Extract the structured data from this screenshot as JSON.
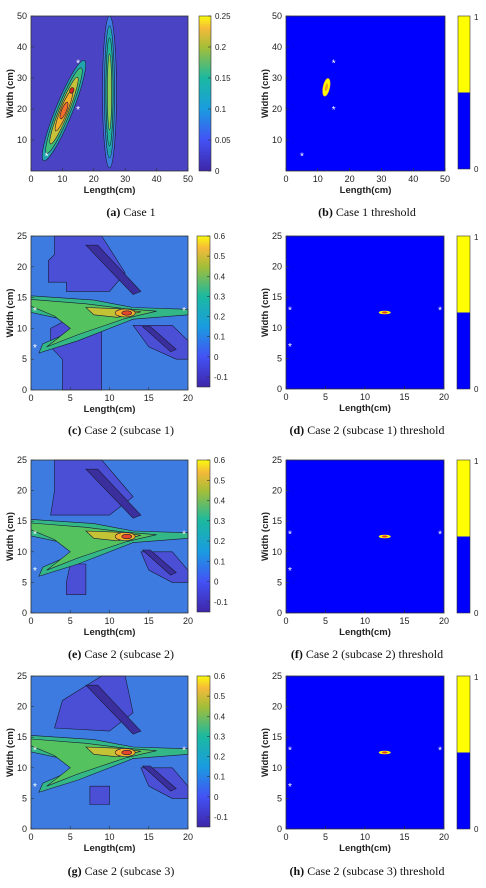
{
  "colors": {
    "parula_dark": "#3b2f9e",
    "parula_bg": "#4a43c4",
    "parula_green": "#2fb88a",
    "parula_teal": "#22a3b0",
    "parula_yellow": "#f9e21f",
    "parula_orange": "#f4b02a",
    "parula_blue": "#3d7be0",
    "threshold_blue": "#0000ff",
    "threshold_yellow": "#ffff00",
    "star": "#ffffff"
  },
  "chart_data": [
    {
      "id": "a",
      "type": "heatmap",
      "caption_label": "(a)",
      "caption_text": " Case 1",
      "xlabel": "Length(cm)",
      "ylabel": "Width (cm)",
      "xlim": [
        0,
        50
      ],
      "ylim": [
        0,
        50
      ],
      "xticks": [
        "0",
        "10",
        "20",
        "30",
        "40",
        "50"
      ],
      "yticks": [
        "10",
        "20",
        "30",
        "40",
        "50"
      ],
      "colorbar_ticks": [
        "0",
        "0.05",
        "0.1",
        "0.15",
        "0.2",
        "0.25"
      ],
      "clim": [
        0,
        0.25
      ],
      "sensors": [
        [
          5,
          5
        ],
        [
          15,
          35
        ],
        [
          15,
          20
        ]
      ]
    },
    {
      "id": "b",
      "type": "heatmap",
      "caption_label": "(b)",
      "caption_text": " Case 1 threshold",
      "xlabel": "Length(cm)",
      "ylabel": "Width (cm)",
      "xlim": [
        0,
        50
      ],
      "ylim": [
        0,
        50
      ],
      "xticks": [
        "0",
        "10",
        "20",
        "30",
        "40",
        "50"
      ],
      "yticks": [
        "10",
        "20",
        "30",
        "40",
        "50"
      ],
      "colorbar_ticks": [
        "0",
        "1"
      ],
      "sensors": [
        [
          5,
          5
        ],
        [
          15,
          35
        ],
        [
          15,
          20
        ]
      ]
    },
    {
      "id": "c",
      "type": "heatmap",
      "caption_label": "(c)",
      "caption_text": " Case 2 (subcase 1)",
      "xlabel": "Length(cm)",
      "ylabel": "Width (cm)",
      "xlim": [
        0,
        20
      ],
      "ylim": [
        0,
        25
      ],
      "xticks": [
        "0",
        "5",
        "10",
        "15",
        "20"
      ],
      "yticks": [
        "0",
        "5",
        "10",
        "15",
        "20",
        "25"
      ],
      "colorbar_ticks": [
        "-0.1",
        "0",
        "0.1",
        "0.2",
        "0.3",
        "0.4",
        "0.5",
        "0.6"
      ],
      "clim": [
        -0.15,
        0.6
      ],
      "sensors": [
        [
          0.5,
          13
        ],
        [
          0.5,
          7
        ],
        [
          19.5,
          13
        ]
      ]
    },
    {
      "id": "d",
      "type": "heatmap",
      "caption_label": "(d)",
      "caption_text": " Case 2 (subcase 1) threshold",
      "xlabel": "Length(cm)",
      "ylabel": "Width (cm)",
      "xlim": [
        0,
        20
      ],
      "ylim": [
        0,
        25
      ],
      "xticks": [
        "0",
        "5",
        "10",
        "15",
        "20"
      ],
      "yticks": [
        "0",
        "5",
        "10",
        "15",
        "20",
        "25"
      ],
      "colorbar_ticks": [
        "0",
        "1"
      ],
      "sensors": [
        [
          0.5,
          13
        ],
        [
          0.5,
          7
        ],
        [
          19.5,
          13
        ]
      ]
    },
    {
      "id": "e",
      "type": "heatmap",
      "caption_label": "(e)",
      "caption_text": " Case 2 (subcase 2)",
      "xlabel": "Length(cm)",
      "ylabel": "Width (cm)",
      "xlim": [
        0,
        20
      ],
      "ylim": [
        0,
        25
      ],
      "xticks": [
        "0",
        "5",
        "10",
        "15",
        "20"
      ],
      "yticks": [
        "0",
        "5",
        "10",
        "15",
        "20",
        "25"
      ],
      "colorbar_ticks": [
        "-0.1",
        "0",
        "0.1",
        "0.2",
        "0.3",
        "0.4",
        "0.5",
        "0.6"
      ],
      "clim": [
        -0.15,
        0.6
      ],
      "sensors": [
        [
          0.5,
          13
        ],
        [
          0.5,
          7
        ],
        [
          19.5,
          13
        ]
      ]
    },
    {
      "id": "f",
      "type": "heatmap",
      "caption_label": "(f)",
      "caption_text": " Case 2 (subcase 2) threshold",
      "xlabel": "Length(cm)",
      "ylabel": "Width (cm)",
      "xlim": [
        0,
        20
      ],
      "ylim": [
        0,
        25
      ],
      "xticks": [
        "0",
        "5",
        "10",
        "15",
        "20"
      ],
      "yticks": [
        "0",
        "5",
        "10",
        "15",
        "20",
        "25"
      ],
      "colorbar_ticks": [
        "0",
        "1"
      ],
      "sensors": [
        [
          0.5,
          13
        ],
        [
          0.5,
          7
        ],
        [
          19.5,
          13
        ]
      ]
    },
    {
      "id": "g",
      "type": "heatmap",
      "caption_label": "(g)",
      "caption_text": " Case 2 (subcase 3)",
      "xlabel": "Length(cm)",
      "ylabel": "Width (cm)",
      "xlim": [
        0,
        20
      ],
      "ylim": [
        0,
        25
      ],
      "xticks": [
        "0",
        "5",
        "10",
        "15",
        "20"
      ],
      "yticks": [
        "0",
        "5",
        "10",
        "15",
        "20",
        "25"
      ],
      "colorbar_ticks": [
        "-0.1",
        "0",
        "0.1",
        "0.2",
        "0.3",
        "0.4",
        "0.5",
        "0.6"
      ],
      "clim": [
        -0.15,
        0.6
      ],
      "sensors": [
        [
          0.5,
          13
        ],
        [
          0.5,
          7
        ],
        [
          19.5,
          13
        ]
      ]
    },
    {
      "id": "h",
      "type": "heatmap",
      "caption_label": "(h)",
      "caption_text": " Case 2 (subcase 3) threshold",
      "xlabel": "Length(cm)",
      "ylabel": "Width (cm)",
      "xlim": [
        0,
        20
      ],
      "ylim": [
        0,
        25
      ],
      "xticks": [
        "0",
        "5",
        "10",
        "15",
        "20"
      ],
      "yticks": [
        "0",
        "5",
        "10",
        "15",
        "20",
        "25"
      ],
      "colorbar_ticks": [
        "0",
        "1"
      ],
      "sensors": [
        [
          0.5,
          13
        ],
        [
          0.5,
          7
        ],
        [
          19.5,
          13
        ]
      ]
    }
  ]
}
